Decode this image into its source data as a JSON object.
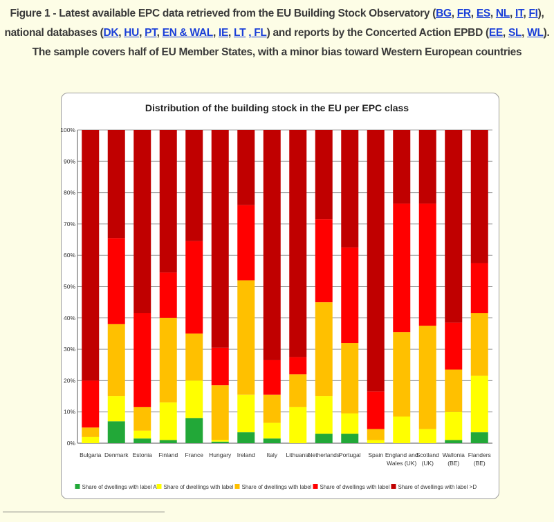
{
  "caption": {
    "pre": "Figure 1 - Latest available EPC data retrieved from the EU Building Stock Observatory (",
    "bso_links": [
      "BG",
      "FR",
      "ES",
      "NL",
      "IT",
      "FI"
    ],
    "mid1": "), national databases (",
    "nat_links": [
      "DK",
      "HU",
      "PT",
      "EN & WAL",
      "IE",
      "LT",
      ", FL"
    ],
    "mid2": ") and reports by the Concerted Action EPBD (",
    "ca_links": [
      "EE",
      "SL",
      "WL"
    ],
    "post": "). The sample covers half of EU Member States, with a minor bias toward Western European countries"
  },
  "chart_data": {
    "type": "bar",
    "stacked": true,
    "title": "Distribution of the building stock in the EU per EPC class",
    "xlabel": "",
    "ylabel": "",
    "ylim": [
      0,
      100
    ],
    "y_ticks": [
      "0%",
      "10%",
      "20%",
      "30%",
      "40%",
      "50%",
      "60%",
      "70%",
      "80%",
      "90%",
      "100%"
    ],
    "categories": [
      "Bulgaria",
      "Denmark",
      "Estonia",
      "Finland",
      "France",
      "Hungary",
      "Ireland",
      "Italy",
      "Lithuania",
      "Netherlands",
      "Portugal",
      "Spain",
      "England and Wales (UK)",
      "Scotland (UK)",
      "Wallonia (BE)",
      "Flanders (BE)"
    ],
    "category_lines": [
      [
        "Bulgaria"
      ],
      [
        "Denmark"
      ],
      [
        "Estonia"
      ],
      [
        "Finland"
      ],
      [
        "France"
      ],
      [
        "Hungary"
      ],
      [
        "Ireland"
      ],
      [
        "Italy"
      ],
      [
        "Lithuania"
      ],
      [
        "Netherlands"
      ],
      [
        "Portugal"
      ],
      [
        "Spain"
      ],
      [
        "England and",
        "Wales (UK)"
      ],
      [
        "Scotland",
        "(UK)"
      ],
      [
        "Wallonia",
        "(BE)"
      ],
      [
        "Flanders",
        "(BE)"
      ]
    ],
    "series": [
      {
        "name": "Share of dwellings with label A",
        "color": "#22a838",
        "values": [
          0,
          7,
          1.5,
          1,
          8,
          0.5,
          3.5,
          1.5,
          0,
          3,
          3,
          0,
          0,
          0,
          1,
          3.5
        ]
      },
      {
        "name": "Share of dwellings with label B",
        "color": "#ffff00",
        "values": [
          2,
          8,
          2.5,
          12,
          12,
          0.5,
          12,
          5,
          11.5,
          12,
          6.5,
          1,
          8.5,
          4.5,
          9,
          18
        ]
      },
      {
        "name": "Share of dwellings with label C",
        "color": "#ffc000",
        "values": [
          3,
          23,
          7.5,
          27,
          15,
          17.5,
          36.5,
          9,
          10.5,
          30,
          22.5,
          3.5,
          27,
          33,
          13.5,
          20
        ]
      },
      {
        "name": "Share of dwellings with label D",
        "color": "#ff0000",
        "values": [
          15,
          27.5,
          30,
          14.5,
          29.5,
          12,
          24,
          11,
          5.5,
          26.5,
          30.5,
          12,
          41,
          39,
          15,
          16
        ]
      },
      {
        "name": "Share of dwellings with label >D",
        "color": "#c00000",
        "values": [
          80,
          34.5,
          58.5,
          45.5,
          35.5,
          69.5,
          24,
          73.5,
          72.5,
          28.5,
          37.5,
          83.5,
          23.5,
          23.5,
          61.5,
          42.5
        ]
      }
    ],
    "grid": true,
    "legend_position": "bottom"
  }
}
